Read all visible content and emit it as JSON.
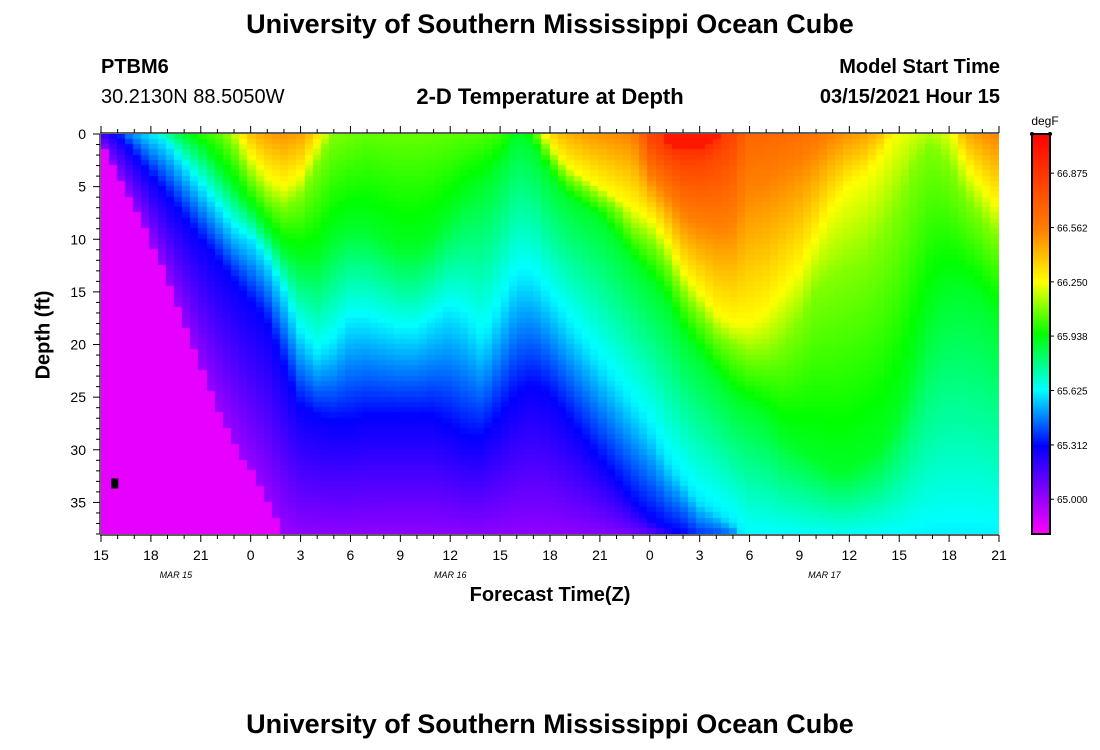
{
  "page_title": "University of Southern Mississippi Ocean Cube",
  "footer_title": "University of Southern Mississippi Ocean Cube",
  "station": {
    "id": "PTBM6",
    "coordinates": "30.2130N 88.5050W"
  },
  "model_start": {
    "label": "Model Start Time",
    "value": "03/15/2021 Hour 15"
  },
  "chart_data": {
    "type": "heatmap",
    "title": "2-D Temperature at Depth",
    "xlabel": "Forecast Time(Z)",
    "ylabel": "Depth (ft)",
    "x_ticks": [
      "15",
      "18",
      "21",
      "0",
      "3",
      "6",
      "9",
      "12",
      "15",
      "18",
      "21",
      "0",
      "3",
      "6",
      "9",
      "12",
      "15",
      "18",
      "21"
    ],
    "x_range_hours": [
      0,
      54
    ],
    "date_labels": [
      {
        "text": "MAR 15",
        "hour": 4.5
      },
      {
        "text": "MAR 16",
        "hour": 21
      },
      {
        "text": "MAR 17",
        "hour": 43.5
      }
    ],
    "y_ticks": [
      0,
      5,
      10,
      15,
      20,
      25,
      30,
      35
    ],
    "y_range": [
      0,
      38
    ],
    "y_inverted": true,
    "colorbar": {
      "unit": "degF",
      "min": 64.8,
      "max": 67.1,
      "ticks": [
        "66.875",
        "66.562",
        "66.250",
        "65.938",
        "65.625",
        "65.312",
        "65.000"
      ],
      "colors": [
        "#ff00ff",
        "#7f00ff",
        "#0000ff",
        "#00ffff",
        "#00ff00",
        "#ffff00",
        "#ff8000",
        "#ff0000"
      ]
    },
    "marker": {
      "hour": 0.5,
      "depth": 33.2
    },
    "boundaries": {
      "comment": "depth (ft) of each isotherm (65.0, 65.3, 65.6, 65.9, 66.1, 66.25, 66.8, 66.9 degF) vs forecast hour",
      "hours": [
        0,
        1,
        2,
        3,
        4,
        5,
        6,
        7,
        8,
        9,
        10,
        11,
        12,
        13,
        14,
        15,
        16,
        17,
        18,
        19,
        20,
        21,
        22,
        23,
        24,
        25,
        26,
        27,
        28,
        29,
        30,
        31,
        32,
        33,
        34,
        35,
        36,
        37,
        38,
        39,
        40,
        41,
        42,
        43,
        44,
        45,
        46,
        47,
        48,
        49,
        50,
        51,
        52,
        53,
        54
      ],
      "levels": [
        65.0,
        65.3,
        65.6,
        65.9,
        66.1,
        66.25,
        66.8,
        66.9
      ],
      "depths": [
        [
          1,
          4,
          7,
          10,
          14,
          18,
          22,
          26,
          29,
          32,
          35,
          38,
          39,
          39,
          39,
          39,
          39,
          39,
          39,
          39,
          39,
          39,
          39,
          39,
          39,
          39,
          39,
          39,
          39,
          39,
          39,
          39,
          39,
          39,
          39,
          39,
          39,
          39,
          39,
          39,
          39,
          39,
          39,
          39,
          39,
          39,
          39,
          39,
          39,
          39,
          39,
          39,
          39,
          39,
          39
        ],
        [
          -1,
          0,
          2,
          4,
          6,
          8,
          10,
          12,
          14,
          16,
          18,
          22,
          26,
          27,
          27.5,
          27.5,
          27,
          27,
          27,
          27,
          27,
          28,
          29,
          29,
          27,
          25,
          24,
          25,
          27,
          29,
          31,
          33,
          35,
          36.5,
          37.5,
          38,
          39,
          39,
          39,
          39,
          39,
          39,
          39,
          39,
          39,
          39,
          39,
          39,
          39,
          39,
          39,
          39,
          39,
          39,
          39
        ],
        [
          -2,
          -1,
          -1,
          0,
          1,
          3,
          5,
          7,
          9,
          10,
          12,
          15,
          19,
          21,
          20,
          18,
          18,
          18.5,
          19,
          19,
          18,
          17,
          18,
          20,
          17,
          14,
          14,
          16,
          18,
          20,
          22,
          24,
          26,
          28,
          31,
          33,
          35,
          36,
          37,
          39,
          39,
          39,
          39,
          39,
          39,
          39,
          39,
          39,
          39,
          39,
          39,
          39,
          39,
          39,
          39
        ],
        [
          -3,
          -2,
          -2,
          -1,
          -1,
          0,
          1,
          3,
          5,
          7,
          9,
          11,
          12,
          12,
          10,
          9,
          9,
          10,
          11,
          11,
          10,
          8,
          6,
          5,
          3,
          0,
          1,
          4,
          6,
          7,
          8,
          10,
          12,
          14,
          16,
          19,
          21,
          23,
          25,
          26,
          27,
          29,
          30,
          31,
          32,
          32,
          31,
          30,
          27,
          22,
          17,
          15,
          15,
          16,
          18
        ],
        [
          -4,
          -3,
          -3,
          -2,
          -2,
          -1,
          -1,
          -1,
          1,
          4,
          6,
          7,
          6,
          3,
          0,
          -1,
          -2,
          -2,
          -2,
          -2,
          -2,
          -2,
          -2,
          -2,
          -2,
          -2,
          -1,
          2,
          4,
          5,
          6,
          7,
          9,
          10,
          12,
          15,
          17,
          19,
          20,
          21,
          21,
          20,
          18,
          15,
          14,
          13,
          12,
          10,
          7,
          3,
          1,
          3,
          6,
          8,
          10
        ],
        [
          -5,
          -4,
          -4,
          -3,
          -3,
          -2,
          -2,
          -3,
          -1,
          2,
          4,
          5,
          4,
          1,
          -2,
          -3,
          -4,
          -4,
          -4,
          -4,
          -4,
          -4,
          -4,
          -4,
          -4,
          -4,
          -2,
          1,
          3,
          4,
          5,
          6,
          7,
          8,
          10,
          13,
          15,
          17,
          18,
          18,
          17,
          15,
          13,
          10,
          7,
          5,
          4,
          2,
          -1,
          -2,
          -2,
          -1,
          3,
          5,
          7
        ],
        [
          -6,
          -6,
          -6,
          -6,
          -6,
          -6,
          -6,
          -6,
          -6,
          -6,
          -6,
          -6,
          -6,
          -6,
          -6,
          -6,
          -6,
          -6,
          -6,
          -6,
          -6,
          -6,
          -6,
          -6,
          -6,
          -6,
          -6,
          -6,
          -6,
          -6,
          -6,
          -6,
          -6,
          0.5,
          2,
          3,
          3,
          2,
          0.5,
          -6,
          -6,
          -6,
          -6,
          -6,
          -6,
          -6,
          -6,
          -6,
          -6,
          -6,
          -6,
          -6,
          -6,
          -6,
          -6
        ],
        [
          -7,
          -7,
          -7,
          -7,
          -7,
          -7,
          -7,
          -7,
          -7,
          -7,
          -7,
          -7,
          -7,
          -7,
          -7,
          -7,
          -7,
          -7,
          -7,
          -7,
          -7,
          -7,
          -7,
          -7,
          -7,
          -7,
          -7,
          -7,
          -7,
          -7,
          -7,
          -7,
          -7,
          -7,
          1,
          1.5,
          1.5,
          1,
          -7,
          -7,
          -7,
          -7,
          -7,
          -7,
          -7,
          -7,
          -7,
          -7,
          -7,
          -7,
          -7,
          -7,
          -7,
          -7,
          -7
        ]
      ]
    }
  }
}
